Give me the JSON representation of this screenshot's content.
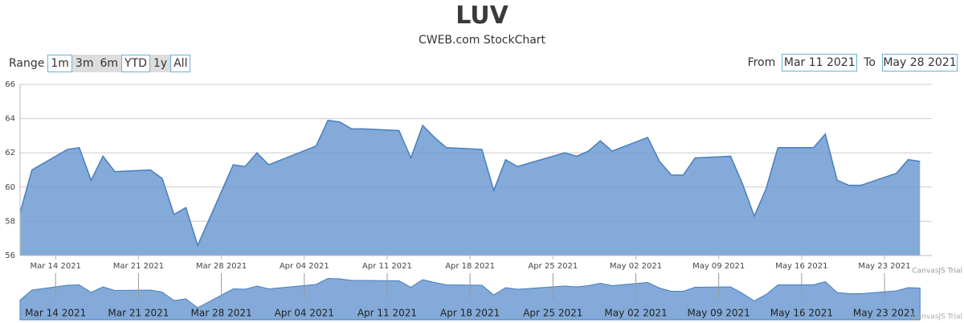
{
  "header": {
    "title": "LUV",
    "subtitle": "CWEB.com StockChart"
  },
  "range_selector": {
    "label": "Range",
    "buttons": [
      "1m",
      "3m",
      "6m",
      "YTD",
      "1y",
      "All"
    ]
  },
  "input_fields": {
    "from_label": "From",
    "from": "Mar 11 2021",
    "to_label": "To",
    "to": "May 28 2021"
  },
  "watermark": "CanvasJS Trial",
  "chart_data": {
    "type": "area",
    "color": "#6d9bd1",
    "grid": true,
    "x": [
      "2021-03-11",
      "2021-03-12",
      "2021-03-15",
      "2021-03-16",
      "2021-03-17",
      "2021-03-18",
      "2021-03-19",
      "2021-03-22",
      "2021-03-23",
      "2021-03-24",
      "2021-03-25",
      "2021-03-26",
      "2021-03-29",
      "2021-03-30",
      "2021-03-31",
      "2021-04-01",
      "2021-04-05",
      "2021-04-06",
      "2021-04-07",
      "2021-04-08",
      "2021-04-09",
      "2021-04-12",
      "2021-04-13",
      "2021-04-14",
      "2021-04-15",
      "2021-04-16",
      "2021-04-19",
      "2021-04-20",
      "2021-04-21",
      "2021-04-22",
      "2021-04-23",
      "2021-04-26",
      "2021-04-27",
      "2021-04-28",
      "2021-04-29",
      "2021-04-30",
      "2021-05-03",
      "2021-05-04",
      "2021-05-05",
      "2021-05-06",
      "2021-05-07",
      "2021-05-10",
      "2021-05-11",
      "2021-05-12",
      "2021-05-13",
      "2021-05-14",
      "2021-05-17",
      "2021-05-18",
      "2021-05-19",
      "2021-05-20",
      "2021-05-21",
      "2021-05-24",
      "2021-05-25",
      "2021-05-26"
    ],
    "values": [
      58.5,
      61.0,
      62.2,
      62.3,
      60.4,
      61.8,
      60.9,
      61.0,
      60.5,
      58.4,
      58.8,
      56.6,
      61.3,
      61.2,
      62.0,
      61.3,
      62.4,
      63.9,
      63.8,
      63.4,
      63.4,
      63.3,
      61.7,
      63.6,
      62.9,
      62.3,
      62.2,
      59.8,
      61.6,
      61.2,
      61.4,
      62.0,
      61.8,
      62.1,
      62.7,
      62.1,
      62.9,
      61.5,
      60.7,
      60.7,
      61.7,
      61.8,
      60.2,
      58.3,
      59.9,
      62.3,
      62.3,
      63.1,
      60.4,
      60.1,
      60.1,
      60.8,
      61.6,
      61.5
    ],
    "xlim": [
      "2021-03-11",
      "2021-05-27"
    ],
    "xticks": [
      {
        "value": "2021-03-14",
        "label": "Mar 14 2021"
      },
      {
        "value": "2021-03-21",
        "label": "Mar 21 2021"
      },
      {
        "value": "2021-03-28",
        "label": "Mar 28 2021"
      },
      {
        "value": "2021-04-04",
        "label": "Apr 04 2021"
      },
      {
        "value": "2021-04-11",
        "label": "Apr 11 2021"
      },
      {
        "value": "2021-04-18",
        "label": "Apr 18 2021"
      },
      {
        "value": "2021-04-25",
        "label": "Apr 25 2021"
      },
      {
        "value": "2021-05-02",
        "label": "May 02 2021"
      },
      {
        "value": "2021-05-09",
        "label": "May 09 2021"
      },
      {
        "value": "2021-05-16",
        "label": "May 16 2021"
      },
      {
        "value": "2021-05-23",
        "label": "May 23 2021"
      }
    ],
    "ylim": [
      56,
      66
    ],
    "yticks": [
      56,
      58,
      60,
      62,
      64,
      66
    ]
  }
}
